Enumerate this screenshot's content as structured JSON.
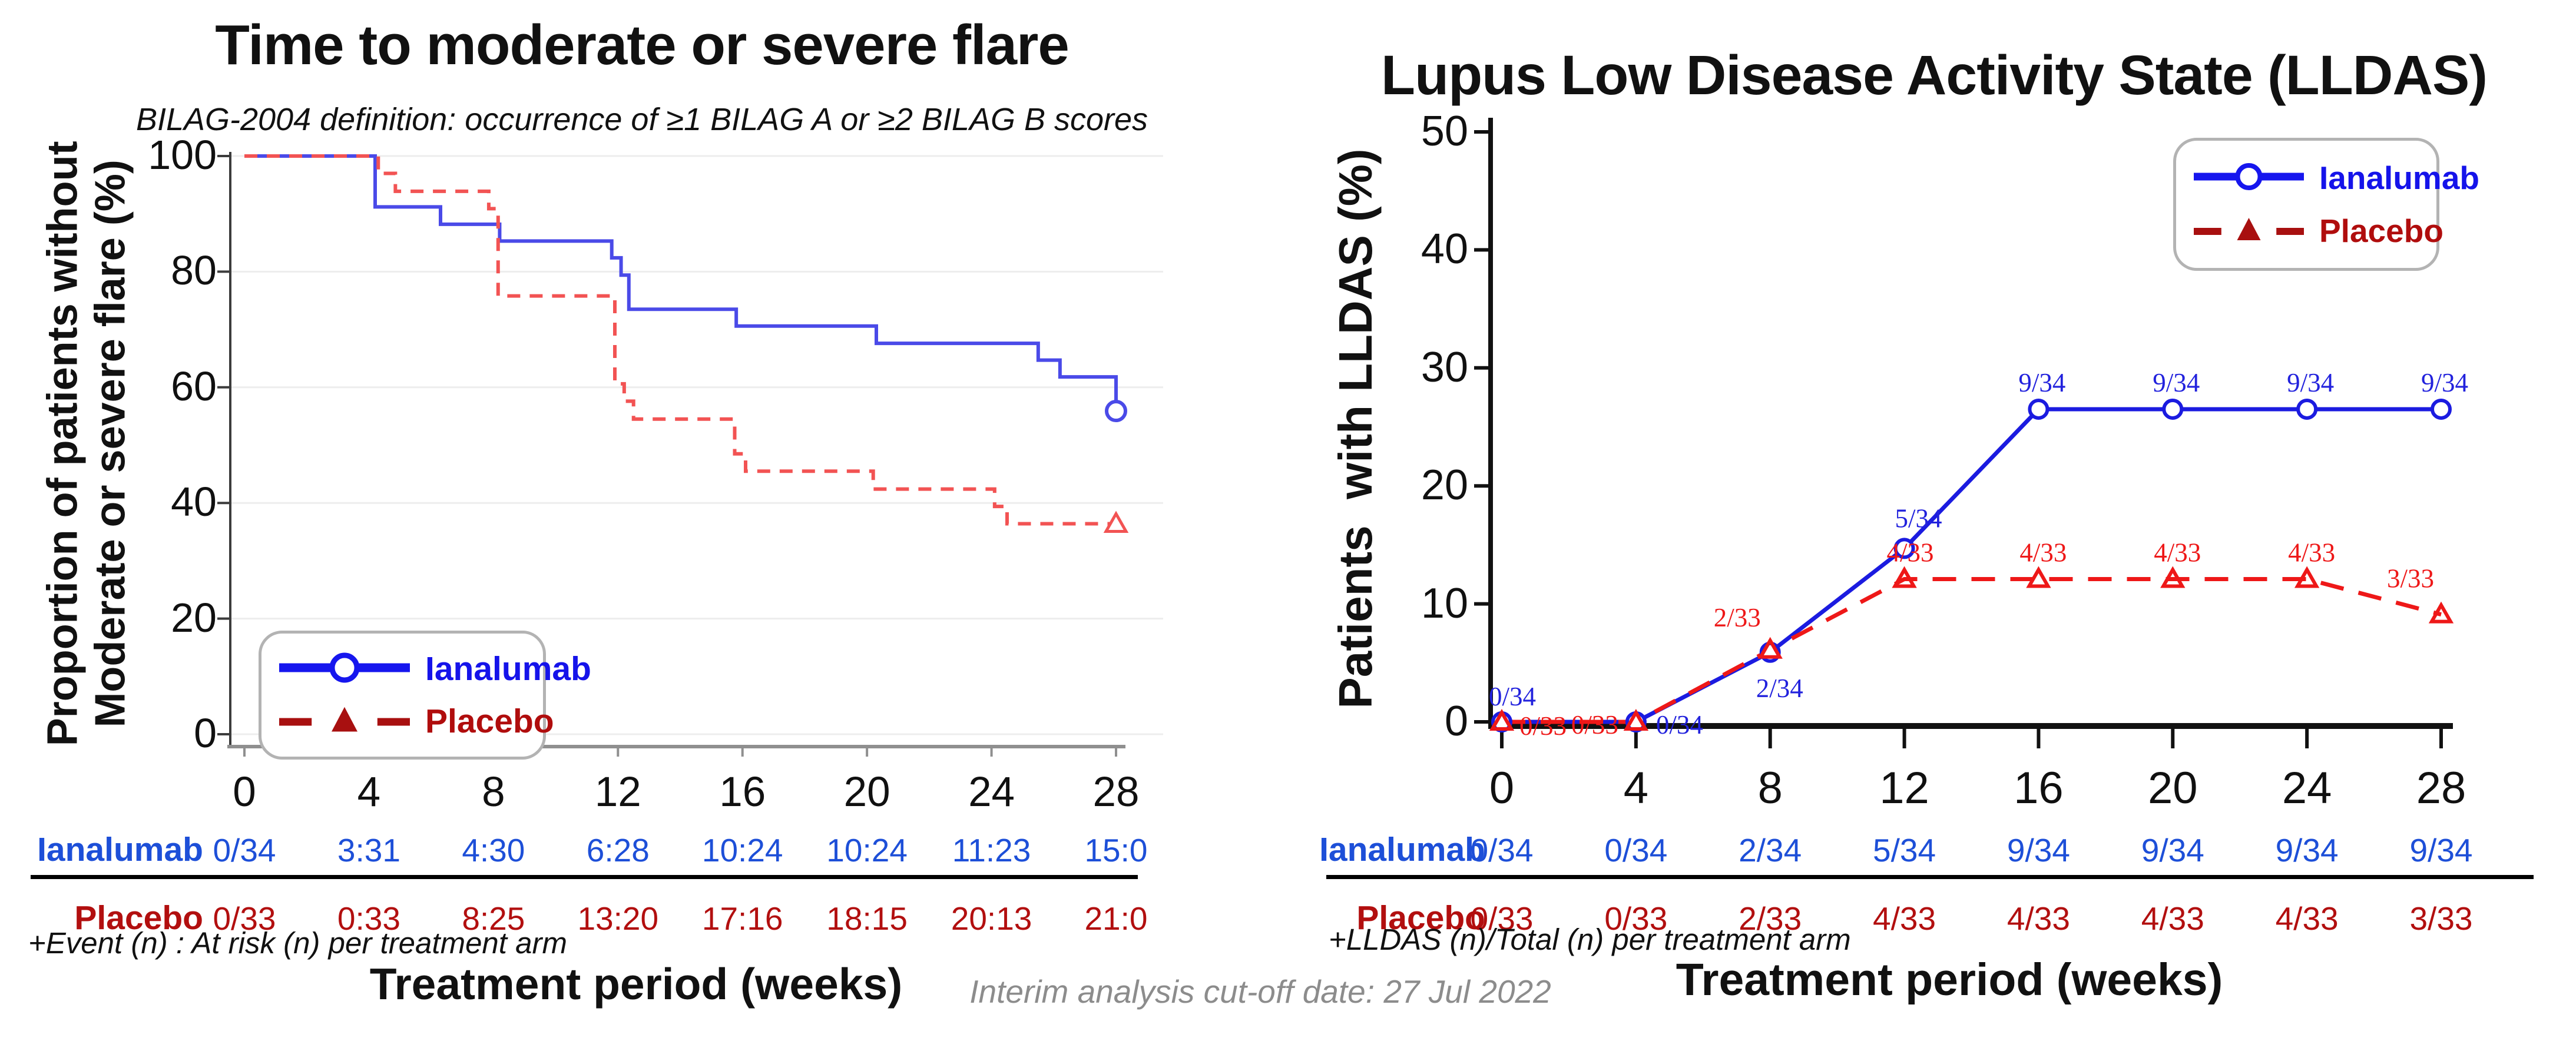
{
  "figure": {
    "background": "#ffffff",
    "footer_note": "Interim analysis cut-off date: 27 Jul 2022"
  },
  "colors": {
    "left_blue_line": "#4a4ae8",
    "left_red_line": "#f25353",
    "right_blue_line": "#1b1be0",
    "right_red_line": "#ee1818",
    "blue_label_text": "#2222dd",
    "red_label_text": "#ee1818",
    "table_blue_text": "#1d4fd8",
    "table_red_text": "#b20f0f",
    "legend_blue": "#1616ee",
    "legend_red": "#a81010",
    "legend_blue_text": "#1513ea",
    "legend_red_text": "#b00d0d",
    "grid": "#ededed",
    "left_axis": "#3c3c3c",
    "left_xaxis": "#8f8f8f",
    "right_axis": "#111111",
    "gray_note": "#8c8c8c"
  },
  "chart_data": [
    {
      "type": "line",
      "subtype": "kaplan-meier-step",
      "title": "Time to moderate or severe flare",
      "subtitle": "BILAG-2004 definition: occurrence of ≥1 BILAG A or ≥2 BILAG B scores",
      "ylabel_line1": "Proportion of patients without",
      "ylabel_line2": "Moderate or severe flare (%)",
      "xlabel": "Treatment period (weeks)",
      "xticks": [
        0,
        4,
        8,
        12,
        16,
        20,
        24,
        28
      ],
      "yticks": [
        0,
        20,
        40,
        60,
        80,
        100
      ],
      "xlim": [
        0,
        28
      ],
      "ylim": [
        0,
        100
      ],
      "grid": "horizontal",
      "legend_position": "lower-left",
      "series": [
        {
          "name": "Ianalumab",
          "style": "solid",
          "marker": "circle-open",
          "steps": [
            [
              0,
              100
            ],
            [
              4.2,
              100
            ],
            [
              4.2,
              91.2
            ],
            [
              6.3,
              91.2
            ],
            [
              6.3,
              88.2
            ],
            [
              8.2,
              88.2
            ],
            [
              8.2,
              85.3
            ],
            [
              11.8,
              85.3
            ],
            [
              11.8,
              82.4
            ],
            [
              12.1,
              82.4
            ],
            [
              12.1,
              79.4
            ],
            [
              12.35,
              79.4
            ],
            [
              12.35,
              73.5
            ],
            [
              15.8,
              73.5
            ],
            [
              15.8,
              70.6
            ],
            [
              20.3,
              70.6
            ],
            [
              20.3,
              67.6
            ],
            [
              25.5,
              67.6
            ],
            [
              25.5,
              64.7
            ],
            [
              26.2,
              64.7
            ],
            [
              26.2,
              61.8
            ],
            [
              28,
              61.8
            ],
            [
              28,
              55.9
            ]
          ],
          "end_marker": {
            "shape": "circle",
            "week": 28,
            "value": 55.9
          }
        },
        {
          "name": "Placebo",
          "style": "dashed",
          "marker": "triangle-open",
          "steps": [
            [
              0,
              100
            ],
            [
              4.3,
              100
            ],
            [
              4.3,
              97.0
            ],
            [
              4.85,
              97.0
            ],
            [
              4.85,
              93.9
            ],
            [
              7.85,
              93.9
            ],
            [
              7.85,
              90.9
            ],
            [
              8.15,
              90.9
            ],
            [
              8.15,
              75.8
            ],
            [
              11.9,
              75.8
            ],
            [
              11.9,
              60.6
            ],
            [
              12.2,
              60.6
            ],
            [
              12.2,
              57.6
            ],
            [
              12.5,
              57.6
            ],
            [
              12.5,
              54.5
            ],
            [
              15.75,
              54.5
            ],
            [
              15.75,
              48.5
            ],
            [
              16.1,
              48.5
            ],
            [
              16.1,
              45.5
            ],
            [
              20.2,
              45.5
            ],
            [
              20.2,
              42.4
            ],
            [
              24.1,
              42.4
            ],
            [
              24.1,
              39.4
            ],
            [
              24.5,
              39.4
            ],
            [
              24.5,
              36.4
            ],
            [
              28,
              36.4
            ]
          ],
          "end_marker": {
            "shape": "triangle",
            "week": 28,
            "value": 36.4
          }
        }
      ],
      "risk_table": {
        "rows": [
          {
            "label": "Ianalumab",
            "color": "blue",
            "values": [
              "0/34",
              "3:31",
              "4:30",
              "6:28",
              "10:24",
              "10:24",
              "11:23",
              "15:0"
            ]
          },
          {
            "label": "Placebo",
            "color": "red",
            "values": [
              "0/33",
              "0:33",
              "8:25",
              "13:20",
              "17:16",
              "18:15",
              "20:13",
              "21:0"
            ]
          }
        ],
        "footnote": "+Event (n) : At risk (n) per treatment arm"
      }
    },
    {
      "type": "line",
      "title": "Lupus Low Disease Activity State (LLDAS)",
      "ylabel": "Patients  with LLDAS (%)",
      "xlabel": "Treatment period (weeks)",
      "x": [
        0,
        4,
        8,
        12,
        16,
        20,
        24,
        28
      ],
      "xticks": [
        0,
        4,
        8,
        12,
        16,
        20,
        24,
        28
      ],
      "yticks": [
        0,
        10,
        20,
        30,
        40,
        50
      ],
      "xlim": [
        0,
        28
      ],
      "ylim": [
        0,
        50
      ],
      "grid": "none",
      "legend_position": "upper-right",
      "series": [
        {
          "name": "Ianalumab",
          "style": "solid",
          "marker": "circle-open",
          "values": [
            0,
            0,
            5.9,
            14.7,
            26.5,
            26.5,
            26.5,
            26.5
          ],
          "point_labels": [
            "0/34",
            "0/34",
            "2/34",
            "5/34",
            "9/34",
            "9/34",
            "9/34",
            "9/34"
          ],
          "label_offsets": [
            [
              18,
              -28,
              "middle"
            ],
            [
              34,
              20,
              "start"
            ],
            [
              16,
              76,
              "middle"
            ],
            [
              24,
              -36,
              "middle"
            ],
            [
              6,
              -30,
              "middle"
            ],
            [
              6,
              -30,
              "middle"
            ],
            [
              6,
              -30,
              "middle"
            ],
            [
              6,
              -30,
              "middle"
            ]
          ]
        },
        {
          "name": "Placebo",
          "style": "dashed",
          "marker": "triangle-open",
          "values": [
            0,
            0,
            6.1,
            12.1,
            12.1,
            12.1,
            12.1,
            9.1
          ],
          "point_labels": [
            "0/33",
            "0/33",
            "2/33",
            "4/33",
            "4/33",
            "4/33",
            "4/33",
            "3/33"
          ],
          "label_offsets": [
            [
              30,
              22,
              "start"
            ],
            [
              -30,
              20,
              "end"
            ],
            [
              -56,
              -40,
              "middle"
            ],
            [
              10,
              -30,
              "middle"
            ],
            [
              8,
              -30,
              "middle"
            ],
            [
              8,
              -30,
              "middle"
            ],
            [
              8,
              -30,
              "middle"
            ],
            [
              -52,
              -46,
              "middle"
            ]
          ]
        }
      ],
      "risk_table": {
        "rows": [
          {
            "label": "Ianalumab",
            "color": "blue",
            "values": [
              "0/34",
              "0/34",
              "2/34",
              "5/34",
              "9/34",
              "9/34",
              "9/34",
              "9/34"
            ]
          },
          {
            "label": "Placebo",
            "color": "red",
            "values": [
              "0/33",
              "0/33",
              "2/33",
              "4/33",
              "4/33",
              "4/33",
              "4/33",
              "3/33"
            ]
          }
        ],
        "footnote": "+LLDAS (n)/Total (n) per treatment arm"
      }
    }
  ]
}
